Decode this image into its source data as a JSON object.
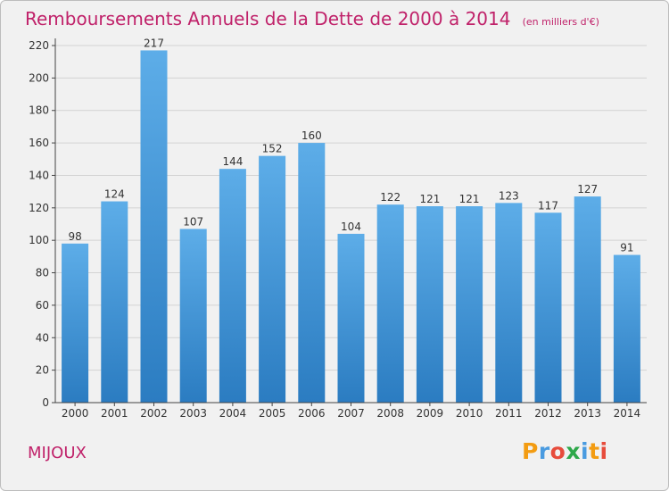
{
  "header": {
    "title": "Remboursements Annuels de la Dette de 2000 à 2014",
    "subtitle": "(en milliers d'€)"
  },
  "footer": {
    "commune": "MIJOUX",
    "brand": "Proxiti"
  },
  "colors": {
    "title": "#c0226a",
    "bar_top": "#5dade8",
    "bar_bottom": "#2b7cc1",
    "background": "#f1f1f1",
    "grid": "#d3d3d3"
  },
  "chart_data": {
    "type": "bar",
    "title": "Remboursements Annuels de la Dette de 2000 à 2014",
    "subtitle": "(en milliers d'€)",
    "xlabel": "",
    "ylabel": "",
    "categories": [
      "2000",
      "2001",
      "2002",
      "2003",
      "2004",
      "2005",
      "2006",
      "2007",
      "2008",
      "2009",
      "2010",
      "2011",
      "2012",
      "2013",
      "2014"
    ],
    "values": [
      98,
      124,
      217,
      107,
      144,
      152,
      160,
      104,
      122,
      121,
      121,
      123,
      117,
      127,
      91
    ],
    "ylim": [
      0,
      220
    ],
    "yticks": [
      0,
      20,
      40,
      60,
      80,
      100,
      120,
      140,
      160,
      180,
      200,
      220
    ],
    "grid": true,
    "data_labels": true
  }
}
